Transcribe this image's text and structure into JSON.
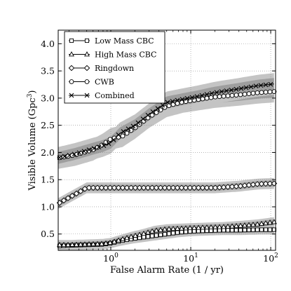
{
  "chart_data": {
    "type": "line",
    "title": "",
    "xlabel": "False Alarm Rate (1 / yr)",
    "ylabel": "Visible Volume (Gpc",
    "ylabel_superscript": "3",
    "ylabel_suffix": ")",
    "x_scale": "log",
    "xlim": [
      0.22,
      115
    ],
    "ylim": [
      0.2,
      4.25
    ],
    "x_ticks": [
      1,
      10,
      100
    ],
    "x_tick_labels": [
      {
        "base": "10",
        "exp": "0"
      },
      {
        "base": "10",
        "exp": "1"
      },
      {
        "base": "10",
        "exp": "2"
      }
    ],
    "y_ticks": [
      0.5,
      1.0,
      1.5,
      2.0,
      2.5,
      3.0,
      3.5,
      4.0
    ],
    "y_tick_labels": [
      "0.5",
      "1.0",
      "1.5",
      "2.0",
      "2.5",
      "3.0",
      "3.5",
      "4.0"
    ],
    "grid": true,
    "legend_position": "top-left",
    "band_colors": {
      "outer": "#c4c4c4",
      "inner": "#9e9e9e"
    },
    "series": [
      {
        "name": "Low Mass CBC",
        "marker": "square",
        "points": [
          [
            0.22,
            0.28
          ],
          [
            0.3,
            0.29
          ],
          [
            0.5,
            0.3
          ],
          [
            0.8,
            0.31
          ],
          [
            1.0,
            0.33
          ],
          [
            1.3,
            0.37
          ],
          [
            1.8,
            0.41
          ],
          [
            2.5,
            0.44
          ],
          [
            3.5,
            0.47
          ],
          [
            5,
            0.5
          ],
          [
            7,
            0.53
          ],
          [
            10,
            0.55
          ],
          [
            15,
            0.56
          ],
          [
            25,
            0.57
          ],
          [
            40,
            0.57
          ],
          [
            70,
            0.58
          ],
          [
            110,
            0.58
          ]
        ],
        "band_outer": 0.09,
        "band_inner": 0.05
      },
      {
        "name": "High Mass CBC",
        "marker": "triangle",
        "points": [
          [
            0.22,
            0.3
          ],
          [
            0.3,
            0.3
          ],
          [
            0.5,
            0.31
          ],
          [
            0.8,
            0.32
          ],
          [
            1.0,
            0.34
          ],
          [
            1.3,
            0.39
          ],
          [
            1.8,
            0.45
          ],
          [
            2.5,
            0.5
          ],
          [
            3.5,
            0.56
          ],
          [
            5,
            0.59
          ],
          [
            7,
            0.6
          ],
          [
            10,
            0.61
          ],
          [
            15,
            0.62
          ],
          [
            25,
            0.63
          ],
          [
            40,
            0.65
          ],
          [
            70,
            0.68
          ],
          [
            110,
            0.72
          ]
        ],
        "band_outer": 0.09,
        "band_inner": 0.05
      },
      {
        "name": "Ringdown",
        "marker": "diamond",
        "points": [
          [
            0.22,
            1.06
          ],
          [
            0.3,
            1.17
          ],
          [
            0.4,
            1.27
          ],
          [
            0.5,
            1.35
          ],
          [
            0.7,
            1.35
          ],
          [
            1,
            1.35
          ],
          [
            2,
            1.35
          ],
          [
            5,
            1.35
          ],
          [
            10,
            1.35
          ],
          [
            20,
            1.35
          ],
          [
            40,
            1.38
          ],
          [
            70,
            1.42
          ],
          [
            110,
            1.43
          ]
        ],
        "band_outer": 0.1,
        "band_inner": 0.055
      },
      {
        "name": "CWB",
        "marker": "circle",
        "points": [
          [
            0.22,
            1.9
          ],
          [
            0.35,
            1.95
          ],
          [
            0.6,
            2.05
          ],
          [
            0.8,
            2.15
          ],
          [
            1.0,
            2.25
          ],
          [
            1.4,
            2.3
          ],
          [
            2,
            2.45
          ],
          [
            3,
            2.65
          ],
          [
            5,
            2.85
          ],
          [
            8,
            2.93
          ],
          [
            12,
            2.97
          ],
          [
            20,
            3.02
          ],
          [
            40,
            3.06
          ],
          [
            70,
            3.1
          ],
          [
            110,
            3.12
          ]
        ],
        "band_outer": 0.2,
        "band_inner": 0.11
      },
      {
        "name": "Combined",
        "marker": "x",
        "points": [
          [
            0.22,
            1.9
          ],
          [
            0.35,
            1.97
          ],
          [
            0.6,
            2.07
          ],
          [
            0.8,
            2.12
          ],
          [
            1.0,
            2.18
          ],
          [
            1.3,
            2.35
          ],
          [
            2,
            2.5
          ],
          [
            3,
            2.7
          ],
          [
            5,
            2.92
          ],
          [
            8,
            2.98
          ],
          [
            12,
            3.03
          ],
          [
            20,
            3.1
          ],
          [
            40,
            3.17
          ],
          [
            70,
            3.23
          ],
          [
            110,
            3.26
          ]
        ],
        "band_outer": 0.2,
        "band_inner": 0.11
      }
    ]
  }
}
